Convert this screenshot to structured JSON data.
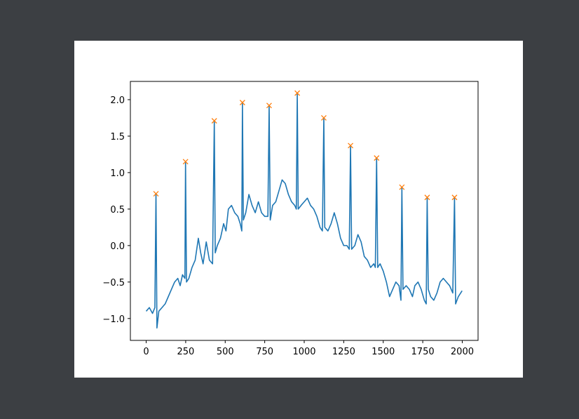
{
  "chart_data": {
    "type": "line",
    "xlim": [
      -100,
      2100
    ],
    "ylim": [
      -1.3,
      2.25
    ],
    "xticks": [
      0,
      250,
      500,
      750,
      1000,
      1250,
      1500,
      1750,
      2000
    ],
    "yticks": [
      {
        "value": -1,
        "label": "−1.0"
      },
      {
        "value": -0.5,
        "label": "−0.5"
      },
      {
        "value": 0,
        "label": "0.0"
      },
      0.5,
      {
        "value": 1,
        "label": "1.0"
      },
      1.5,
      {
        "value": 2,
        "label": "2.0"
      }
    ],
    "grid": false,
    "series": [
      {
        "color": "#1f77b4",
        "x": [
          0,
          20,
          40,
          55,
          62,
          68,
          80,
          100,
          120,
          140,
          160,
          180,
          200,
          215,
          230,
          245,
          249,
          255,
          270,
          290,
          310,
          330,
          345,
          360,
          380,
          400,
          420,
          431,
          437,
          450,
          470,
          490,
          505,
          520,
          540,
          560,
          580,
          595,
          605,
          609,
          615,
          630,
          650,
          670,
          690,
          710,
          730,
          750,
          770,
          778,
          785,
          800,
          820,
          840,
          860,
          880,
          900,
          920,
          940,
          950,
          956,
          962,
          980,
          1000,
          1020,
          1040,
          1060,
          1080,
          1100,
          1115,
          1124,
          1130,
          1150,
          1170,
          1190,
          1210,
          1230,
          1250,
          1270,
          1285,
          1293,
          1300,
          1320,
          1340,
          1360,
          1380,
          1400,
          1420,
          1440,
          1450,
          1458,
          1465,
          1480,
          1500,
          1520,
          1540,
          1560,
          1580,
          1600,
          1612,
          1618,
          1625,
          1645,
          1665,
          1685,
          1700,
          1720,
          1740,
          1760,
          1772,
          1778,
          1785,
          1800,
          1820,
          1840,
          1860,
          1880,
          1900,
          1920,
          1940,
          1951,
          1958,
          1975,
          1999
        ],
        "values": [
          -0.9,
          -0.85,
          -0.93,
          -0.85,
          0.71,
          -1.13,
          -0.9,
          -0.85,
          -0.8,
          -0.7,
          -0.6,
          -0.5,
          -0.45,
          -0.55,
          -0.4,
          -0.45,
          1.15,
          -0.5,
          -0.45,
          -0.3,
          -0.2,
          0.1,
          -0.1,
          -0.25,
          0.05,
          -0.2,
          -0.25,
          1.71,
          -0.1,
          0.0,
          0.1,
          0.3,
          0.2,
          0.5,
          0.55,
          0.45,
          0.4,
          0.3,
          0.2,
          1.96,
          0.35,
          0.45,
          0.7,
          0.55,
          0.45,
          0.6,
          0.45,
          0.4,
          0.4,
          1.92,
          0.35,
          0.55,
          0.6,
          0.75,
          0.9,
          0.85,
          0.7,
          0.6,
          0.55,
          0.5,
          2.09,
          0.5,
          0.55,
          0.6,
          0.65,
          0.55,
          0.5,
          0.4,
          0.25,
          0.2,
          1.75,
          0.25,
          0.2,
          0.3,
          0.45,
          0.3,
          0.1,
          0.0,
          0.0,
          -0.05,
          1.37,
          -0.05,
          0.0,
          0.15,
          0.05,
          -0.15,
          -0.2,
          -0.3,
          -0.25,
          -0.3,
          1.2,
          -0.3,
          -0.25,
          -0.35,
          -0.5,
          -0.7,
          -0.6,
          -0.5,
          -0.55,
          -0.75,
          0.8,
          -0.6,
          -0.55,
          -0.6,
          -0.7,
          -0.55,
          -0.5,
          -0.6,
          -0.75,
          -0.8,
          0.66,
          -0.6,
          -0.7,
          -0.75,
          -0.65,
          -0.5,
          -0.45,
          -0.5,
          -0.55,
          -0.65,
          0.66,
          -0.8,
          -0.7,
          -0.62
        ]
      },
      {
        "color": "#ff7f0e",
        "marker": "x",
        "x": [
          62,
          249,
          431,
          609,
          778,
          956,
          1124,
          1293,
          1458,
          1618,
          1778,
          1951
        ],
        "values": [
          0.71,
          1.15,
          1.71,
          1.96,
          1.92,
          2.09,
          1.75,
          1.37,
          1.2,
          0.8,
          0.66,
          0.66
        ]
      }
    ]
  }
}
